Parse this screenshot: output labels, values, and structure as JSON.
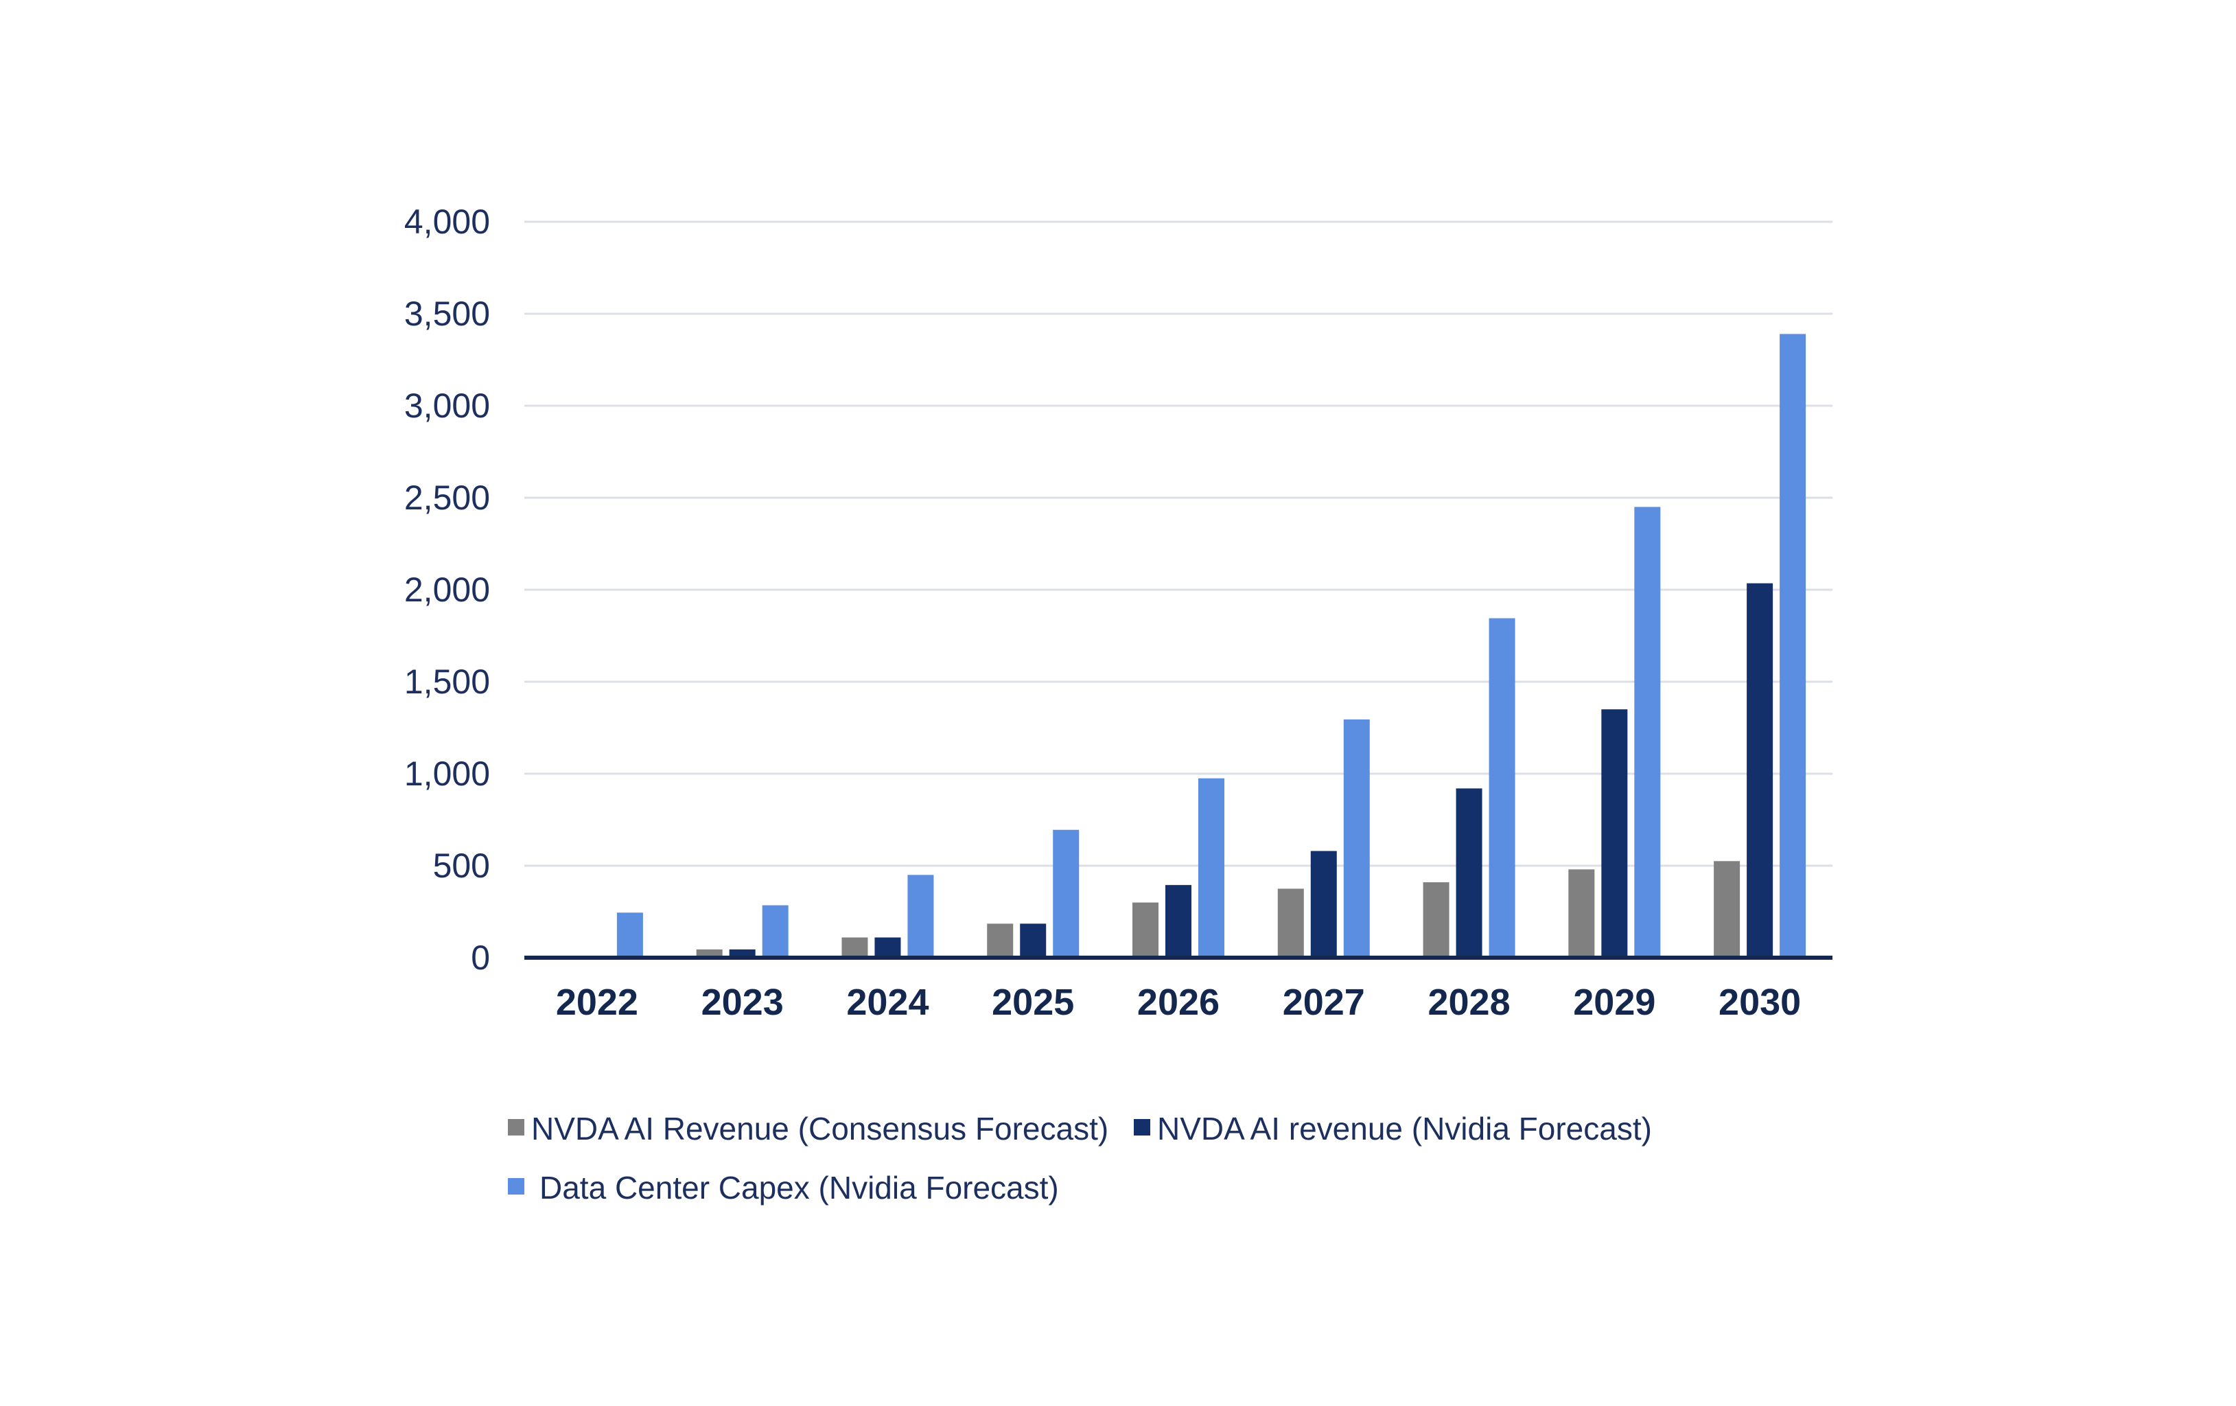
{
  "chart_data": {
    "type": "bar",
    "title": "",
    "xlabel": "",
    "ylabel": "",
    "ylim": [
      0,
      4000
    ],
    "yticks": [
      0,
      500,
      1000,
      1500,
      2000,
      2500,
      3000,
      3500,
      4000
    ],
    "ytick_labels": [
      "0",
      "500",
      "1,000",
      "1,500",
      "2,000",
      "2,500",
      "3,000",
      "3,500",
      "4,000"
    ],
    "grid": true,
    "legend_position": "bottom",
    "categories": [
      "2022",
      "2023",
      "2024",
      "2025",
      "2026",
      "2027",
      "2028",
      "2029",
      "2030"
    ],
    "series": [
      {
        "name": "NVDA AI Revenue (Consensus Forecast)",
        "color": "#808080",
        "values": [
          0,
          45,
          110,
          185,
          300,
          375,
          410,
          480,
          525
        ]
      },
      {
        "name": "NVDA AI revenue (Nvidia Forecast)",
        "color": "#14306a",
        "values": [
          0,
          45,
          110,
          185,
          395,
          580,
          920,
          1350,
          2035
        ]
      },
      {
        "name": "Data Center Capex (Nvidia Forecast)",
        "color": "#5b8de0",
        "values": [
          245,
          285,
          450,
          695,
          975,
          1295,
          1845,
          2450,
          3390
        ]
      }
    ]
  }
}
